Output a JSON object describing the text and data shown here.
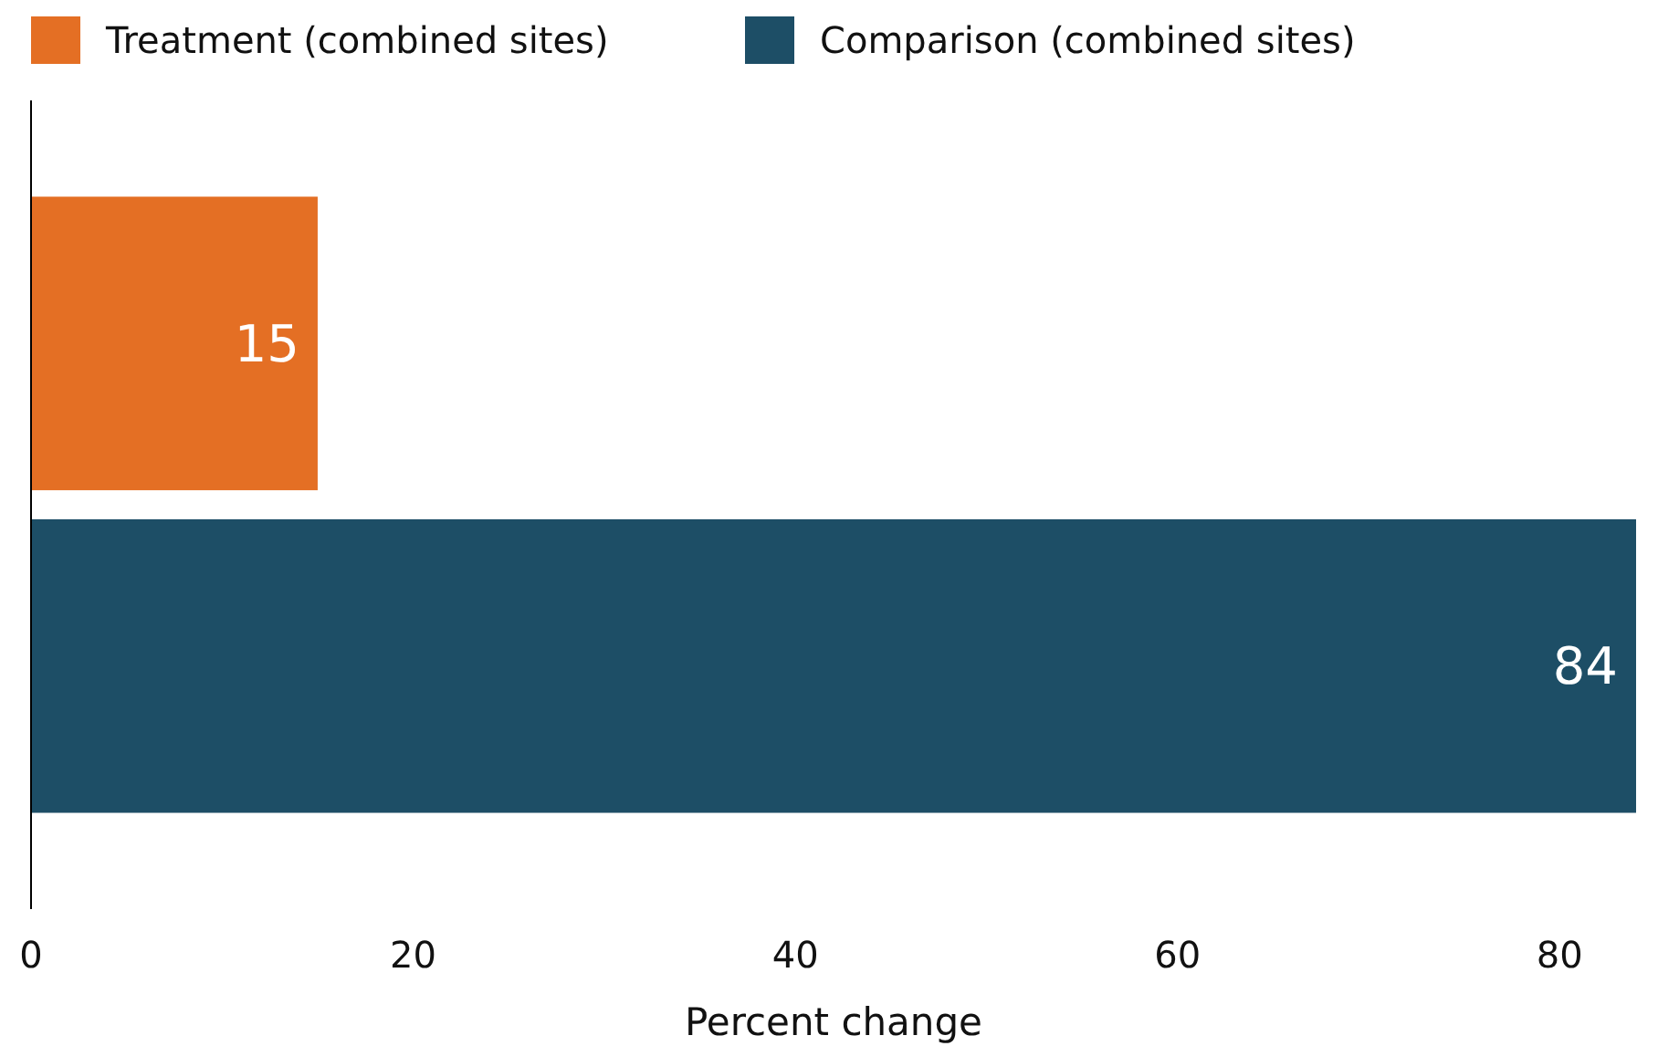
{
  "chart_data": {
    "type": "bar",
    "orientation": "horizontal",
    "categories": [
      null
    ],
    "series": [
      {
        "name": "Treatment (combined sites)",
        "color": "#e46f24",
        "values": [
          15
        ]
      },
      {
        "name": "Comparison (combined sites)",
        "color": "#1d4e66",
        "values": [
          84
        ]
      }
    ],
    "xlabel": "Percent change",
    "xlim": [
      0,
      84
    ],
    "xticks": [
      0,
      20,
      40,
      60,
      80
    ],
    "data_labels": true,
    "legend": "top",
    "grid": false
  }
}
